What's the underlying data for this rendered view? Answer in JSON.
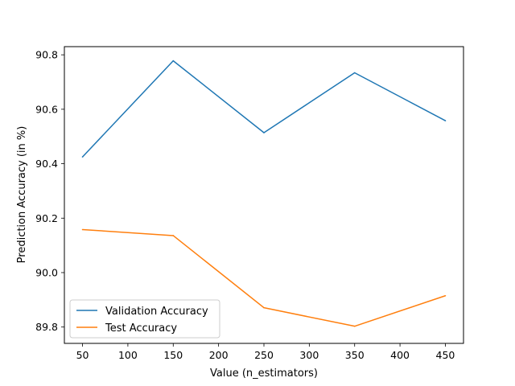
{
  "chart_data": {
    "type": "line",
    "title": "",
    "xlabel": "Value (n_estimators)",
    "ylabel": "Prediction Accuracy (in %)",
    "x": [
      50,
      150,
      250,
      350,
      450
    ],
    "xlim": [
      30,
      470
    ],
    "ylim": [
      89.74,
      90.83
    ],
    "xticks": [
      50,
      100,
      150,
      200,
      250,
      300,
      350,
      400,
      450
    ],
    "yticks": [
      89.8,
      90.0,
      90.2,
      90.4,
      90.6,
      90.8
    ],
    "ytick_labels": [
      "89.8",
      "90.0",
      "90.2",
      "90.4",
      "90.6",
      "90.8"
    ],
    "grid": false,
    "legend_position": "lower-left",
    "series": [
      {
        "name": "Validation Accuracy",
        "color": "#1f77b4",
        "values": [
          90.425,
          90.778,
          90.514,
          90.734,
          90.558
        ]
      },
      {
        "name": "Test Accuracy",
        "color": "#ff7f0e",
        "values": [
          90.158,
          90.136,
          89.871,
          89.803,
          89.915
        ]
      }
    ]
  }
}
